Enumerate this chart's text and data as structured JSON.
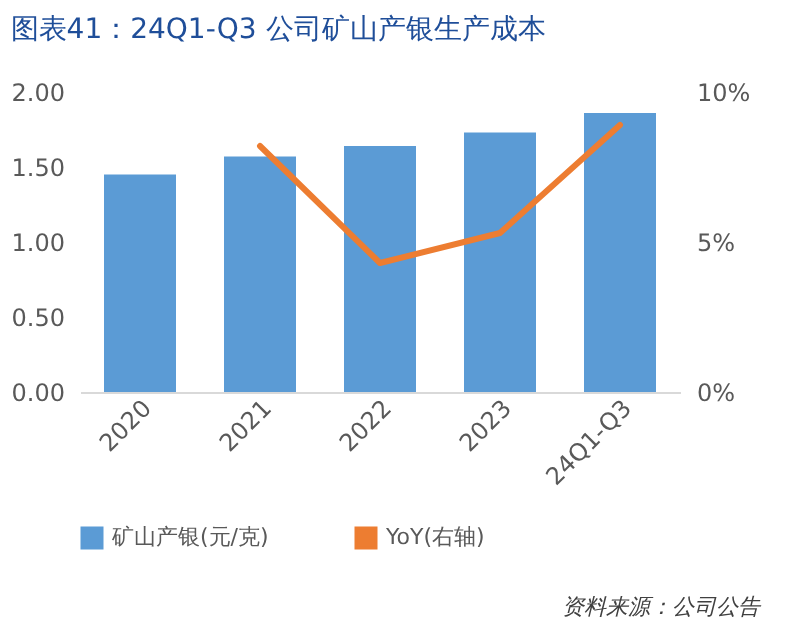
{
  "chart_data": {
    "type": "bar",
    "title": "图表41：24Q1-Q3 公司矿山产银生产成本",
    "categories": [
      "2020",
      "2021",
      "2022",
      "2023",
      "24Q1-Q3"
    ],
    "series": [
      {
        "name": "矿山产银(元/克)",
        "color": "#5b9bd5",
        "values": [
          1.45,
          1.57,
          1.64,
          1.73,
          1.86
        ]
      },
      {
        "name": "YoY(右轴)",
        "color": "#ed7d31",
        "type": "line",
        "axis": "y2",
        "values": [
          null,
          8.2,
          4.3,
          5.3,
          8.9
        ]
      }
    ],
    "ylim": [
      0,
      2
    ],
    "yticks": [
      {
        "value": 0,
        "label": "0.00"
      },
      {
        "value": 0.5,
        "label": "0.50"
      },
      {
        "value": 1,
        "label": "1.00"
      },
      {
        "value": 1.5,
        "label": "1.50"
      },
      {
        "value": 2,
        "label": "2.00"
      }
    ],
    "y2lim": [
      0,
      10
    ],
    "y2ticks": [
      {
        "value": 0,
        "label": "0%"
      },
      {
        "value": 5,
        "label": "5%"
      },
      {
        "value": 10,
        "label": "10%"
      }
    ],
    "legend": "bottom",
    "grid": false,
    "annotations": [
      "资料来源：公司公告"
    ]
  }
}
